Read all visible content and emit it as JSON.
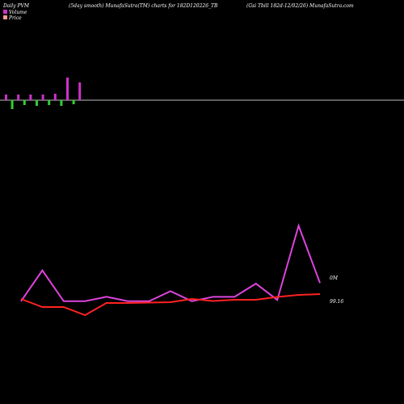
{
  "header": {
    "left": "Daily PVM",
    "center": "(5day smooth) MunafaSutra(TM) charts for 182D120226_TB",
    "right": "(Gsi  Tbill 182d-12/02/26) MunafaSutra.com"
  },
  "legend": {
    "volume_label": "Volume",
    "price_label": "Price"
  },
  "colors": {
    "background": "#000000",
    "volume_up": "#cc33cc",
    "volume_down": "#33cc33",
    "volume_line": "#dd44dd",
    "price_line": "#ff2222",
    "baseline": "#bbbbbb",
    "text": "#ffffff"
  },
  "chart_data": {
    "type": "line",
    "title": "(5day smooth) MunafaSutra(TM) charts for 182D120226_TB",
    "volume_bars": [
      {
        "value": 0.35,
        "direction": "up"
      },
      {
        "value": 0.55,
        "direction": "down"
      },
      {
        "value": 0.35,
        "direction": "up"
      },
      {
        "value": 0.3,
        "direction": "down"
      },
      {
        "value": 0.35,
        "direction": "up"
      },
      {
        "value": 0.35,
        "direction": "down"
      },
      {
        "value": 0.35,
        "direction": "up"
      },
      {
        "value": 0.3,
        "direction": "down"
      },
      {
        "value": 0.4,
        "direction": "up"
      },
      {
        "value": 0.35,
        "direction": "down"
      },
      {
        "value": 1.4,
        "direction": "up"
      },
      {
        "value": 0.25,
        "direction": "down"
      },
      {
        "value": 1.1,
        "direction": "up"
      }
    ],
    "series": [
      {
        "name": "Volume",
        "values": [
          8,
          57,
          8,
          8,
          15,
          8,
          8,
          24,
          8,
          15,
          15,
          36,
          10,
          128,
          37
        ],
        "end_label": "0M"
      },
      {
        "name": "Price",
        "values": [
          99.06,
          99.04,
          99.04,
          99.02,
          99.05,
          99.05,
          99.051,
          99.052,
          99.06,
          99.055,
          99.058,
          99.058,
          99.065,
          99.07,
          99.072
        ],
        "end_label": "99.16"
      }
    ]
  }
}
